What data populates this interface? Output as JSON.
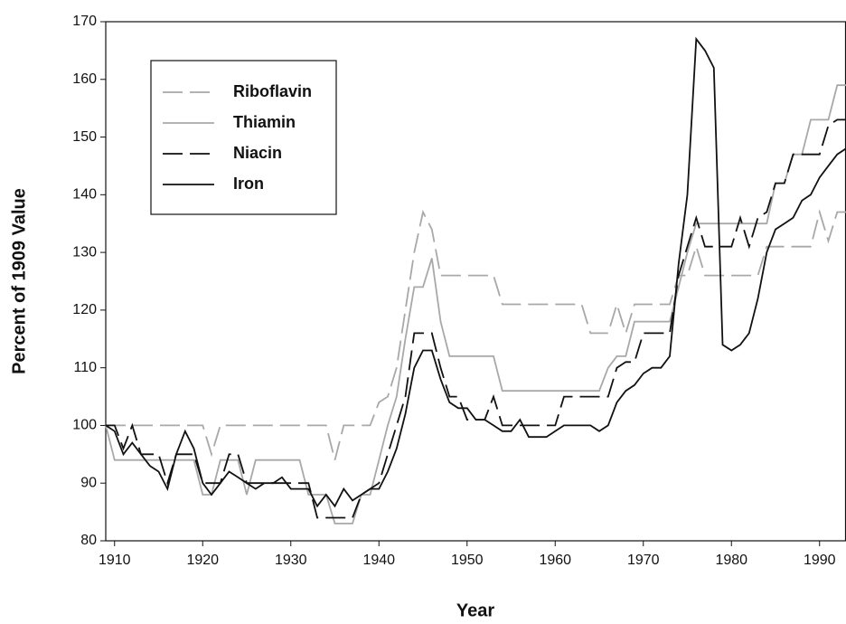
{
  "chart_data": {
    "type": "line",
    "x_label": "Year",
    "y_label": "Percent of 1909 Value",
    "x": [
      1909,
      1910,
      1911,
      1912,
      1913,
      1914,
      1915,
      1916,
      1917,
      1918,
      1919,
      1920,
      1921,
      1922,
      1923,
      1924,
      1925,
      1926,
      1927,
      1928,
      1929,
      1930,
      1931,
      1932,
      1933,
      1934,
      1935,
      1936,
      1937,
      1938,
      1939,
      1940,
      1941,
      1942,
      1943,
      1944,
      1945,
      1946,
      1947,
      1948,
      1949,
      1950,
      1951,
      1952,
      1953,
      1954,
      1955,
      1956,
      1957,
      1958,
      1959,
      1960,
      1961,
      1962,
      1963,
      1964,
      1965,
      1966,
      1967,
      1968,
      1969,
      1970,
      1971,
      1972,
      1973,
      1974,
      1975,
      1976,
      1977,
      1978,
      1979,
      1980,
      1981,
      1982,
      1983,
      1984,
      1985,
      1986,
      1987,
      1988,
      1989,
      1990,
      1991,
      1992,
      1993
    ],
    "series": [
      {
        "name": "Riboflavin",
        "color": "#a8a8a8",
        "dashed": true,
        "values": [
          100,
          100,
          100,
          100,
          100,
          100,
          100,
          100,
          100,
          100,
          100,
          100,
          95,
          100,
          100,
          100,
          100,
          100,
          100,
          100,
          100,
          100,
          100,
          100,
          100,
          100,
          94,
          100,
          100,
          100,
          100,
          104,
          105,
          110,
          120,
          130,
          137,
          134,
          126,
          126,
          126,
          126,
          126,
          126,
          126,
          121,
          121,
          121,
          121,
          121,
          121,
          121,
          121,
          121,
          121,
          116,
          116,
          116,
          121,
          116,
          121,
          121,
          121,
          121,
          121,
          126,
          126,
          131,
          126,
          126,
          126,
          126,
          126,
          126,
          126,
          131,
          131,
          131,
          131,
          131,
          131,
          137,
          132,
          137,
          137
        ]
      },
      {
        "name": "Thiamin",
        "color": "#a8a8a8",
        "dashed": false,
        "values": [
          100,
          94,
          94,
          94,
          94,
          94,
          94,
          94,
          94,
          94,
          94,
          88,
          88,
          94,
          94,
          94,
          88,
          94,
          94,
          94,
          94,
          94,
          94,
          88,
          88,
          88,
          83,
          83,
          83,
          88,
          88,
          94,
          100,
          105,
          115,
          124,
          124,
          129,
          118,
          112,
          112,
          112,
          112,
          112,
          112,
          106,
          106,
          106,
          106,
          106,
          106,
          106,
          106,
          106,
          106,
          106,
          106,
          110,
          112,
          112,
          118,
          118,
          118,
          118,
          118,
          124,
          130,
          135,
          135,
          135,
          135,
          135,
          135,
          135,
          135,
          135,
          142,
          142,
          147,
          147,
          153,
          153,
          153,
          159,
          159
        ]
      },
      {
        "name": "Niacin",
        "color": "#111111",
        "dashed": true,
        "values": [
          100,
          100,
          96,
          100,
          95,
          95,
          95,
          90,
          95,
          95,
          95,
          90,
          90,
          90,
          95,
          95,
          90,
          90,
          90,
          90,
          90,
          90,
          90,
          90,
          84,
          84,
          84,
          84,
          84,
          88,
          89,
          90,
          95,
          100,
          105,
          116,
          116,
          116,
          110,
          105,
          105,
          101,
          101,
          101,
          105,
          100,
          100,
          100,
          100,
          100,
          100,
          100,
          105,
          105,
          105,
          105,
          105,
          105,
          110,
          111,
          111,
          116,
          116,
          116,
          116,
          126,
          131,
          136,
          131,
          131,
          131,
          131,
          136,
          131,
          136,
          137,
          142,
          142,
          147,
          147,
          147,
          147,
          152,
          153,
          153
        ]
      },
      {
        "name": "Iron",
        "color": "#111111",
        "dashed": false,
        "values": [
          100,
          99,
          95,
          97,
          95,
          93,
          92,
          89,
          95,
          99,
          96,
          90,
          88,
          90,
          92,
          91,
          90,
          89,
          90,
          90,
          91,
          89,
          89,
          89,
          86,
          88,
          86,
          89,
          87,
          88,
          89,
          89,
          92,
          96,
          102,
          110,
          113,
          113,
          108,
          104,
          103,
          103,
          101,
          101,
          100,
          99,
          99,
          101,
          98,
          98,
          98,
          99,
          100,
          100,
          100,
          100,
          99,
          100,
          104,
          106,
          107,
          109,
          110,
          110,
          112,
          128,
          140,
          167,
          165,
          162,
          114,
          113,
          114,
          116,
          122,
          130,
          134,
          135,
          136,
          139,
          140,
          143,
          145,
          147,
          148
        ]
      }
    ],
    "xlim": [
      1909,
      1993
    ],
    "xticks": [
      1910,
      1920,
      1930,
      1940,
      1950,
      1960,
      1970,
      1980,
      1990
    ],
    "ylim": [
      80,
      170
    ],
    "yticks": [
      80,
      90,
      100,
      110,
      120,
      130,
      140,
      150,
      160,
      170
    ],
    "legend": "upper left"
  }
}
